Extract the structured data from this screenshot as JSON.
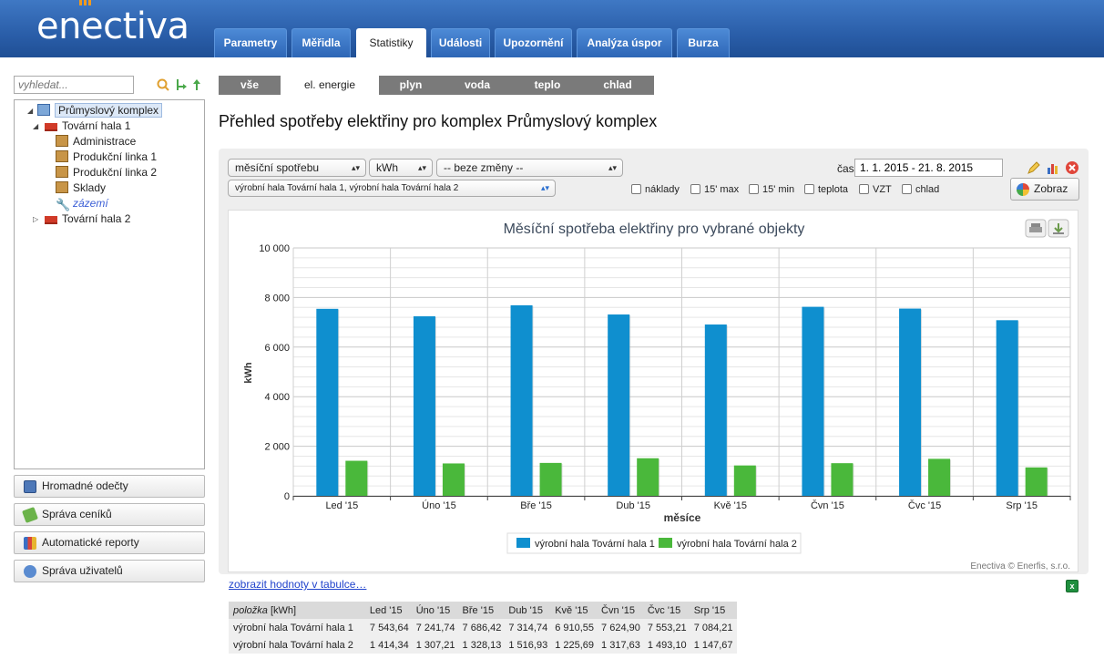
{
  "app": {
    "logo": "enectiva"
  },
  "nav": {
    "tabs": [
      {
        "label": "Parametry",
        "active": false
      },
      {
        "label": "Měřidla",
        "active": false
      },
      {
        "label": "Statistiky",
        "active": true
      },
      {
        "label": "Události",
        "active": false
      },
      {
        "label": "Upozornění",
        "active": false
      },
      {
        "label": "Analýza úspor",
        "active": false
      },
      {
        "label": "Burza",
        "active": false
      }
    ]
  },
  "sidebar": {
    "search_placeholder": "vyhledat...",
    "tree": {
      "root": "Průmyslový komplex",
      "hall1": "Tovární hala 1",
      "admin": "Administrace",
      "line1": "Produkční linka 1",
      "line2": "Produkční linka 2",
      "stores": "Sklady",
      "facilities": "zázemí",
      "hall2": "Tovární hala 2"
    },
    "buttons": {
      "bulk_readings": "Hromadné odečty",
      "price_lists": "Správa ceníků",
      "auto_reports": "Automatické reporty",
      "users": "Správa uživatelů"
    }
  },
  "energy_filter": {
    "tabs": [
      {
        "label": "vše",
        "active": false
      },
      {
        "label": "el. energie",
        "active": true
      },
      {
        "label": "plyn",
        "active": false
      },
      {
        "label": "voda",
        "active": false
      },
      {
        "label": "teplo",
        "active": false
      },
      {
        "label": "chlad",
        "active": false
      }
    ]
  },
  "page": {
    "title": "Přehled spotřeby elektřiny pro komplex Průmyslový komplex"
  },
  "controls": {
    "consumption_select": "měsíční spotřebu",
    "unit_select": "kWh",
    "change_select": "-- beze změny --",
    "objects_select": "výrobní hala Tovární hala 1, výrobní hala Tovární hala 2",
    "time_label": "čas",
    "time_value": "1. 1. 2015 - 21. 8. 2015",
    "show_button": "Zobraz",
    "checkboxes": {
      "costs": "náklady",
      "max15": "15' max",
      "min15": "15' min",
      "temp": "teplota",
      "vzt": "VZT",
      "cooling": "chlad"
    }
  },
  "chart_data": {
    "type": "bar",
    "title": "Měsíční spotřeba elektřiny pro vybrané objekty",
    "xlabel": "měsíce",
    "ylabel": "kWh",
    "ylim": [
      0,
      10000
    ],
    "yticks": [
      "0",
      "2 000",
      "4 000",
      "6 000",
      "8 000",
      "10 000"
    ],
    "categories": [
      "Led '15",
      "Úno '15",
      "Bře '15",
      "Dub '15",
      "Kvě '15",
      "Čvn '15",
      "Čvc '15",
      "Srp '15"
    ],
    "series": [
      {
        "name": "výrobní hala Tovární hala 1",
        "color": "#0f8fcf",
        "values": [
          7543.64,
          7241.74,
          7686.42,
          7314.74,
          6910.55,
          7624.9,
          7553.21,
          7084.21
        ]
      },
      {
        "name": "výrobní hala Tovární hala 2",
        "color": "#4ab83b",
        "values": [
          1414.34,
          1307.21,
          1328.13,
          1516.93,
          1225.69,
          1317.63,
          1493.1,
          1147.67
        ]
      }
    ],
    "grid": true,
    "legend": "bottom-center",
    "credits": "Enectiva © Enerfis, s.r.o."
  },
  "table": {
    "link": "zobrazit hodnoty v tabulce…",
    "header_item": "položka",
    "header_unit": " [kWh]",
    "columns": [
      "Led '15",
      "Úno '15",
      "Bře '15",
      "Dub '15",
      "Kvě '15",
      "Čvn '15",
      "Čvc '15",
      "Srp '15"
    ],
    "rows": [
      {
        "label": "výrobní hala Tovární hala 1",
        "values": [
          "7 543,64",
          "7 241,74",
          "7 686,42",
          "7 314,74",
          "6 910,55",
          "7 624,90",
          "7 553,21",
          "7 084,21"
        ]
      },
      {
        "label": "výrobní hala Tovární hala 2",
        "values": [
          "1 414,34",
          "1 307,21",
          "1 328,13",
          "1 516,93",
          "1 225,69",
          "1 317,63",
          "1 493,10",
          "1 147,67"
        ]
      }
    ]
  }
}
